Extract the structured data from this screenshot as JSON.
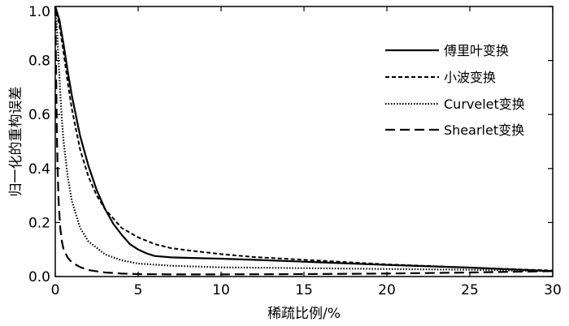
{
  "chart_data": {
    "type": "line",
    "xlabel": "稀疏比例/%",
    "ylabel": "归一化的重构误差",
    "xlim": [
      0,
      30
    ],
    "ylim": [
      0,
      1.0
    ],
    "xticks": [
      "0",
      "5",
      "10",
      "15",
      "20",
      "25",
      "30"
    ],
    "yticks": [
      "0.0",
      "0.2",
      "0.4",
      "0.6",
      "0.8",
      "1.0"
    ],
    "grid": false,
    "legend_position": "top-right",
    "series": [
      {
        "name": "傅里叶变换",
        "style": "solid",
        "x": [
          0,
          0.25,
          0.5,
          0.75,
          1.0,
          1.5,
          2.0,
          2.5,
          3.0,
          3.5,
          4.0,
          4.5,
          5.0,
          5.5,
          6.0,
          7.0,
          8.0,
          10.0,
          12.0,
          15.0,
          20.0,
          25.0,
          30.0
        ],
        "y": [
          1.0,
          0.95,
          0.86,
          0.76,
          0.67,
          0.52,
          0.41,
          0.32,
          0.25,
          0.195,
          0.155,
          0.12,
          0.1,
          0.086,
          0.076,
          0.071,
          0.069,
          0.066,
          0.062,
          0.055,
          0.043,
          0.033,
          0.02
        ]
      },
      {
        "name": "小波变换",
        "style": "dashed",
        "x": [
          0,
          0.25,
          0.5,
          0.75,
          1.0,
          1.5,
          2.0,
          2.5,
          3.0,
          4.0,
          5.0,
          6.0,
          7.0,
          8.0,
          10.0,
          12.0,
          15.0,
          20.0,
          25.0,
          30.0
        ],
        "y": [
          1.0,
          0.93,
          0.83,
          0.72,
          0.62,
          0.47,
          0.37,
          0.3,
          0.25,
          0.18,
          0.145,
          0.12,
          0.105,
          0.097,
          0.083,
          0.072,
          0.062,
          0.045,
          0.033,
          0.022
        ]
      },
      {
        "name": "Curvelet变换",
        "style": "dotted",
        "x": [
          0,
          0.1,
          0.2,
          0.3,
          0.4,
          0.5,
          0.75,
          1.0,
          1.5,
          2.0,
          3.0,
          4.0,
          5.0,
          7.0,
          10.0,
          15.0,
          20.0,
          25.0,
          30.0
        ],
        "y": [
          1.0,
          0.92,
          0.8,
          0.68,
          0.58,
          0.5,
          0.37,
          0.28,
          0.18,
          0.13,
          0.082,
          0.06,
          0.048,
          0.04,
          0.034,
          0.031,
          0.028,
          0.025,
          0.02
        ]
      },
      {
        "name": "Shearlet变换",
        "style": "longdash",
        "x": [
          0,
          0.05,
          0.1,
          0.15,
          0.2,
          0.3,
          0.4,
          0.5,
          0.75,
          1.0,
          1.5,
          2.0,
          3.0,
          4.0,
          5.0,
          7.0,
          10.0,
          15.0,
          20.0,
          25.0,
          30.0
        ],
        "y": [
          1.0,
          0.75,
          0.52,
          0.38,
          0.28,
          0.18,
          0.13,
          0.1,
          0.07,
          0.052,
          0.035,
          0.024,
          0.015,
          0.011,
          0.009,
          0.008,
          0.008,
          0.009,
          0.011,
          0.015,
          0.02
        ]
      }
    ]
  }
}
